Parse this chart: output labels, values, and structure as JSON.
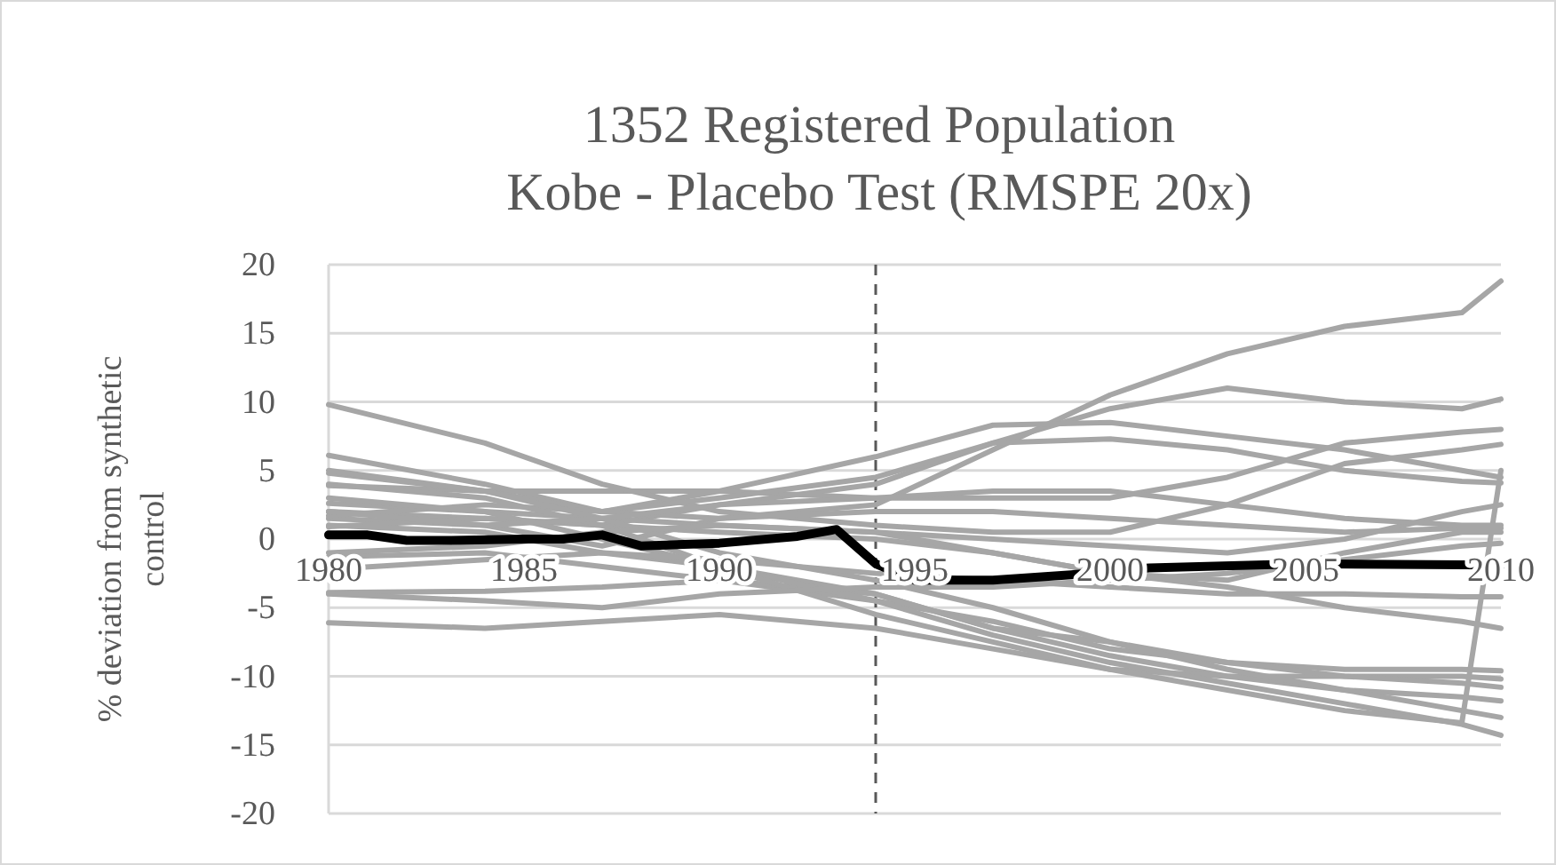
{
  "chart_data": {
    "type": "line",
    "title": "1352 Registered Population\nKobe - Placebo Test (RMSPE 20x)",
    "ylabel": "% deviation from synthetic control",
    "x": [
      1980,
      1984,
      1987,
      1990,
      1994,
      1997,
      2000,
      2003,
      2006,
      2009,
      2010
    ],
    "xlim": [
      1980,
      2010
    ],
    "xticks": [
      1980,
      1985,
      1990,
      1995,
      2000,
      2005,
      2010
    ],
    "ylim": [
      -20,
      20
    ],
    "yticks": [
      -20,
      -15,
      -10,
      -5,
      0,
      5,
      10,
      15,
      20
    ],
    "grid": "y",
    "marker": "none",
    "line_style": "solid",
    "ref_lines": [
      {
        "axis": "x",
        "value": 1994,
        "color": "#595959",
        "line_style": "dashed"
      }
    ],
    "series": [
      {
        "color": "#a6a6a6",
        "values": [
          1.5,
          1.0,
          -0.5,
          1.5,
          2.5,
          6.5,
          10.5,
          13.5,
          15.5,
          16.5,
          18.8
        ]
      },
      {
        "color": "#a6a6a6",
        "values": [
          2,
          1.5,
          1.0,
          2.5,
          4.0,
          7.0,
          9.5,
          11.0,
          10.0,
          9.5,
          10.2
        ]
      },
      {
        "color": "#a6a6a6",
        "values": [
          6.1,
          4.0,
          2.0,
          3.5,
          6.0,
          8.3,
          8.5,
          7.5,
          6.5,
          5.0,
          4.5
        ]
      },
      {
        "color": "#a6a6a6",
        "values": [
          3.9,
          3.5,
          3.5,
          3.5,
          3.0,
          3.0,
          3.0,
          4.5,
          7.0,
          7.8,
          8.0
        ]
      },
      {
        "color": "#a6a6a6",
        "values": [
          9.8,
          7.0,
          4.0,
          2.0,
          1.0,
          0.5,
          0.5,
          2.5,
          5.5,
          6.5,
          6.9
        ]
      },
      {
        "color": "#a6a6a6",
        "values": [
          4.8,
          3.5,
          2.0,
          3.0,
          4.5,
          7.0,
          7.3,
          6.5,
          5.0,
          4.2,
          4.1
        ]
      },
      {
        "color": "#a6a6a6",
        "values": [
          2.6,
          2.0,
          1.5,
          1.0,
          0.5,
          0,
          -0.5,
          -1.0,
          0,
          2.0,
          2.5
        ]
      },
      {
        "color": "#a6a6a6",
        "values": [
          1.7,
          2.5,
          2.0,
          1.5,
          2.0,
          2.0,
          1.5,
          1.0,
          0.5,
          0.8,
          0.8
        ]
      },
      {
        "color": "#a6a6a6",
        "values": [
          0.9,
          1.5,
          1.0,
          0.5,
          0.0,
          -1.0,
          -2.5,
          -3.0,
          -1.0,
          0.5,
          0.5
        ]
      },
      {
        "color": "#a6a6a6",
        "values": [
          -1.3,
          -1.0,
          -2.0,
          -3.0,
          -4.5,
          -6.0,
          -8.0,
          -9.0,
          -9.5,
          -9.5,
          -9.6
        ]
      },
      {
        "color": "#a6a6a6",
        "values": [
          -2.2,
          -1.5,
          -1.0,
          -2.0,
          -4.0,
          -6.5,
          -8.5,
          -10.0,
          -10.0,
          -10.0,
          -10.2
        ]
      },
      {
        "color": "#a6a6a6",
        "values": [
          -3.9,
          -3.8,
          -3.5,
          -3.0,
          -4.0,
          -6.5,
          -7.5,
          -9.0,
          -10.0,
          -10.5,
          -10.8
        ]
      },
      {
        "color": "#a6a6a6",
        "values": [
          -6.1,
          -6.5,
          -6.0,
          -5.5,
          -6.5,
          -8.0,
          -9.5,
          -10.0,
          -11.0,
          -11.5,
          -11.8
        ]
      },
      {
        "color": "#a6a6a6",
        "values": [
          5.0,
          3.5,
          1.5,
          -1.0,
          -3.0,
          -5.0,
          -7.5,
          -9.5,
          -11.0,
          -12.5,
          -13.0
        ]
      },
      {
        "color": "#a6a6a6",
        "values": [
          4.0,
          3.0,
          1.0,
          -2.0,
          -4.5,
          -7.0,
          -9.0,
          -10.5,
          -12.0,
          -13.5,
          -14.3
        ]
      },
      {
        "color": "#a6a6a6",
        "values": [
          3.0,
          2.0,
          0.0,
          -2.0,
          -5.5,
          -7.5,
          -9.5,
          -11.0,
          -12.5,
          -13.4,
          5.0
        ]
      },
      {
        "color": "#a6a6a6",
        "values": [
          1.0,
          0.5,
          -1.0,
          -1.5,
          -2.5,
          -3.0,
          -3.5,
          -4.0,
          -4.0,
          -4.2,
          -4.2
        ]
      },
      {
        "color": "#a6a6a6",
        "values": [
          -1.0,
          -0.5,
          0.5,
          1.0,
          0.5,
          -1.0,
          -2.5,
          -3.5,
          -5.0,
          -6.0,
          -6.5
        ]
      },
      {
        "color": "#a6a6a6",
        "values": [
          -4.0,
          -4.5,
          -5.0,
          -4.0,
          -3.5,
          -3.5,
          -3.0,
          -2.5,
          -1.5,
          -0.5,
          -0.3
        ]
      },
      {
        "color": "#a6a6a6",
        "values": [
          2.0,
          1.0,
          1.5,
          2.5,
          3.0,
          3.5,
          3.5,
          2.5,
          1.5,
          1.0,
          1.0
        ]
      },
      {
        "color": "#000000",
        "x": [
          1980,
          1981,
          1982,
          1983,
          1985,
          1986,
          1987,
          1988,
          1990,
          1992,
          1993,
          1994,
          1995,
          1997,
          1999,
          2001,
          2005,
          2010
        ],
        "values": [
          0.3,
          0.3,
          -0.1,
          -0.1,
          0,
          0,
          0.3,
          -0.5,
          -0.3,
          0.2,
          0.7,
          -1.8,
          -3.0,
          -3.0,
          -2.6,
          -2.1,
          -1.8,
          -1.9
        ]
      }
    ]
  }
}
